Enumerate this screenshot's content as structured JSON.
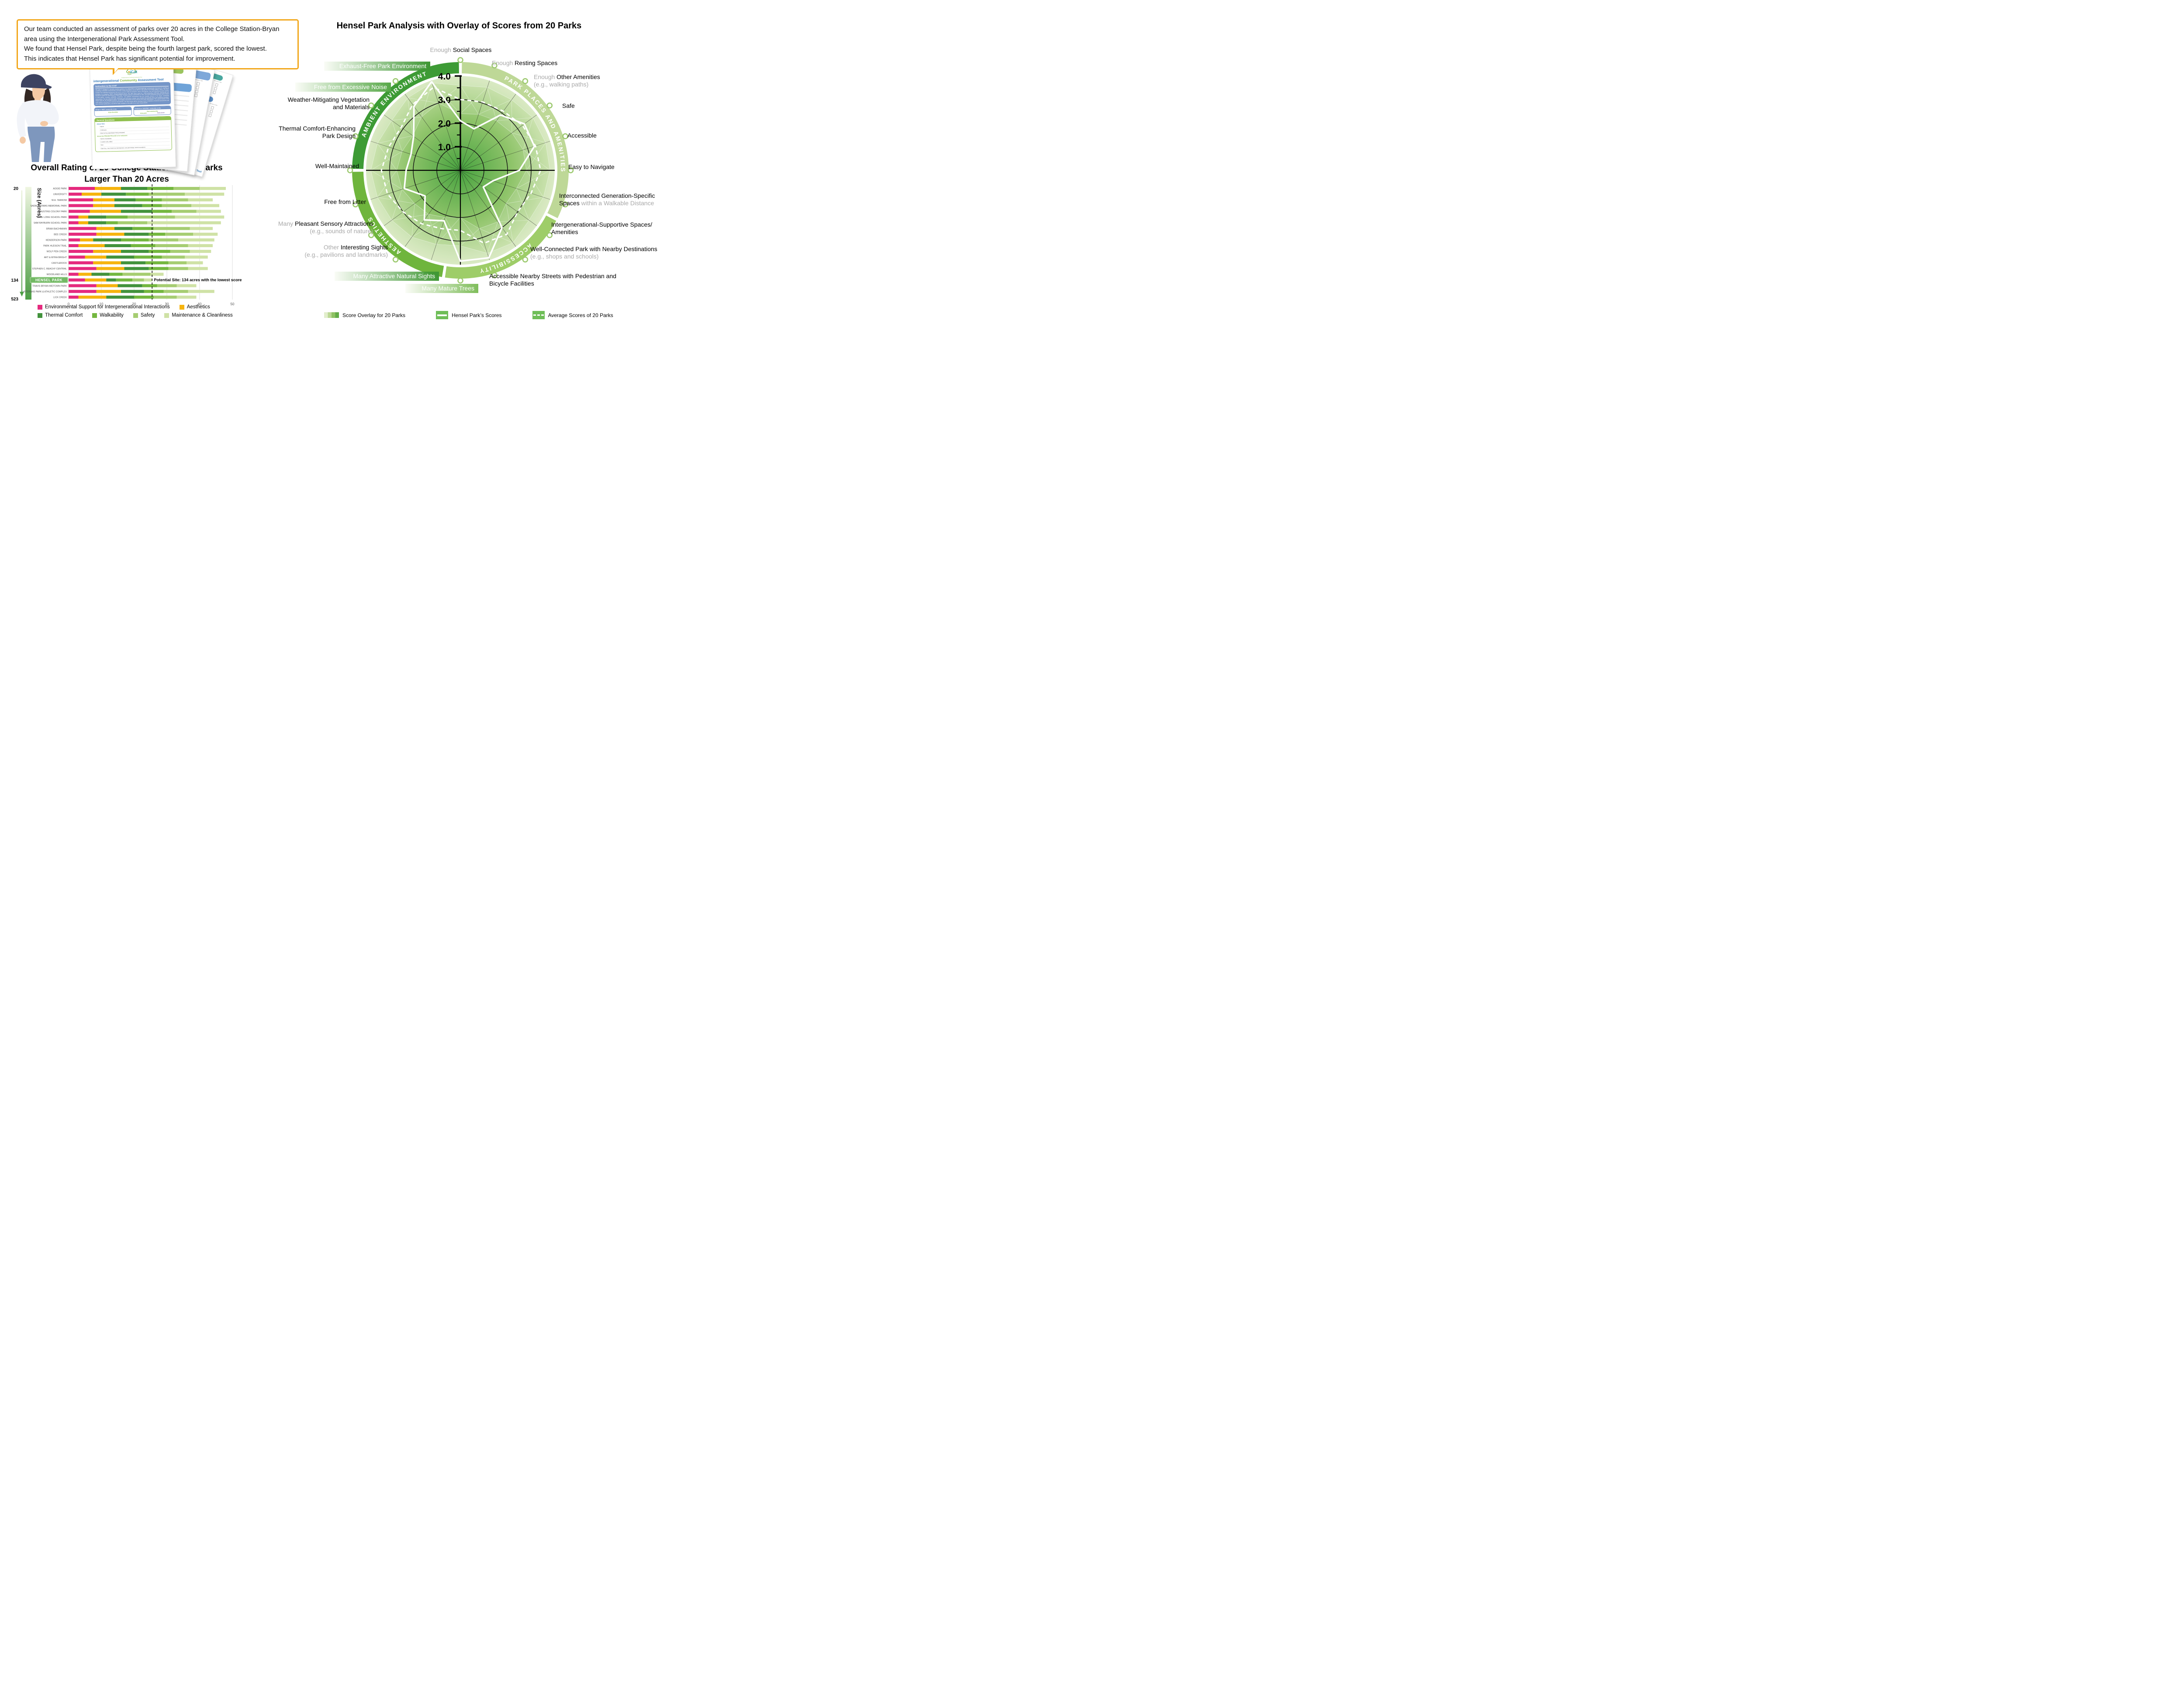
{
  "speech_bubble": {
    "lines": [
      "Our team conducted an assessment of parks over 20 acres in the College Station-Bryan",
      "area using the Intergenerational Park Assessment Tool.",
      "We found that Hensel Park, despite being the fourth largest park, scored the lowest.",
      "This indicates that Hensel Park has significant potential for improvement."
    ]
  },
  "document": {
    "logo_text": "iCat",
    "logo_caption": "Intergenerational Community Assessment Tool",
    "title_parts": [
      {
        "text": "intergenerational ",
        "color": "#2E74B5"
      },
      {
        "text": "Community ",
        "color": "#7CB342"
      },
      {
        "text": "Assessment Tool",
        "color": "#2E74B5"
      }
    ],
    "instruction_header": "Instruction to the iCAT",
    "instruction_body": "The iCAT is designed to provide practical guidance for policymakers and planning/design professionals interested in creating or retrofitting community environments to promote social interactions across different age groups and healthy aging in place. The iCAT includes four individual instruments that can be used for different purposes, users, and projects. The iCAT-checklist provides guiding principles for designing “NEW” intergenerational places. The other three tools (i.e., iCAT-community, iCAT-park, iCAT-street) are intended to guide the assessment of “EXISTING” intergenerational communities or sites. The iCAT-community includes items related to third places, housing, walkability, aesthetics, and ambient environment that are broadly relevant to the larger community environment. The two site-level tools, iCAT-park and iCAT-street, include more detailed site-specific items and individual amenities. These tools are not mutually exclusive, and multiple instruments can be used for the same project/place. The current version of the iCAT toolkit is developed for internal assessments. The final version will be developed upon completion of internal assessments and peer-reviewed publications, and will be made available to the public via an open study website.",
    "design_header": "Design a “NEW” community or site:",
    "design_item": "iCat-checklist",
    "evaluate_header": "Evaluate an “EXISTING” community or site:",
    "evaluate_items": [
      "iCat-community",
      "iCat-park",
      "iCat-street"
    ],
    "general_header": "General Questions",
    "about_you_label": "About YOU:",
    "about_you_items": [
      "Name:",
      "Profession:",
      "Role for the project/place being evaluated:"
    ],
    "about_place_label": "About the PROJECT/PLACE to be evaluated:",
    "about_place_items": [
      "Name (if available):",
      "Location (city, state):",
      "Size:",
      "Type (e.g., new mixed-use development, new park design, street renovation):"
    ],
    "back_page_header_fragments": [
      "r Destinations",
      "e, and Sociable"
    ],
    "back_partial_title": "ity Assessment Tool",
    "checkbox_headers_3": [
      "Somewhat agree",
      "Strongly agree",
      "Not sure or N/A"
    ],
    "checkbox_headers_4": [
      "Somewhat disagree",
      "Somewhat agree",
      "Strongly agree",
      "Not sure or N/A"
    ]
  },
  "chart_data": [
    {
      "type": "bar",
      "orientation": "horizontal-stacked",
      "title_line1": "Overall Rating of 20 College Station-Bryan Parks",
      "title_line2": "Larger Than 20 Acres",
      "y_axis_label": "Size (Acres)",
      "size_axis": {
        "top": "20",
        "hensel": "134",
        "bottom": "523"
      },
      "xlim": [
        0,
        50
      ],
      "x_ticks": [
        "0",
        "10",
        "20",
        "30",
        "40",
        "50"
      ],
      "annotation": "Potential Site: 134 acres with the lowest score",
      "annotation_x": 25.5,
      "highlight_park": "HENSEL PARK",
      "series_names": [
        "Environmental Support for Intergenerational Interactions",
        "Aesthetics",
        "Thermal Comfort",
        "Walkability",
        "Safety",
        "Maintenance & Cleanliness"
      ],
      "series_colors": [
        "#E52A7E",
        "#F6B40E",
        "#42923C",
        "#74B73F",
        "#A6CD72",
        "#CFE2A6"
      ],
      "legend_rows": [
        [
          {
            "color": "#E52A7E",
            "label": "Environmental Support for Intergenerational Interactions"
          },
          {
            "color": "#F6B40E",
            "label": "Aesthetics"
          }
        ],
        [
          {
            "color": "#42923C",
            "label": "Thermal Comfort"
          },
          {
            "color": "#74B73F",
            "label": "Walkability"
          },
          {
            "color": "#A6CD72",
            "label": "Safety"
          },
          {
            "color": "#CFE2A6",
            "label": "Maintenance & Cleanliness"
          }
        ]
      ],
      "parks": [
        {
          "name": "AGGIE PARK",
          "values": [
            8,
            8,
            8,
            8,
            8,
            8
          ]
        },
        {
          "name": "UNIVERSITY",
          "values": [
            4,
            6,
            7.5,
            7,
            11,
            12
          ]
        },
        {
          "name": "W.A. TARROW",
          "values": [
            7.5,
            6.5,
            6.5,
            8,
            8,
            7.5
          ]
        },
        {
          "name": "SADIE THOMAS MEMORIAL PARK",
          "values": [
            7.5,
            6.5,
            8.5,
            6,
            9,
            8.5
          ]
        },
        {
          "name": "AUSTINS COLONY PARK",
          "values": [
            6.5,
            9.5,
            9.5,
            6,
            7.5,
            7.5
          ]
        },
        {
          "name": "JANE LONG SCHOOL PARK",
          "values": [
            3,
            3,
            5.5,
            6.5,
            14.5,
            15
          ]
        },
        {
          "name": "SAM RAYBURN SCHOOL PARK",
          "values": [
            3,
            3,
            5.5,
            3.5,
            9,
            22.5
          ]
        },
        {
          "name": "BRIAN BACHMANN",
          "values": [
            8.5,
            5.5,
            5.5,
            6.5,
            11,
            7
          ]
        },
        {
          "name": "BEE CREEK",
          "values": [
            8.5,
            8.5,
            7.5,
            5,
            8.5,
            7.5
          ]
        },
        {
          "name": "HENDERSON PARK",
          "values": [
            3.5,
            4,
            8.5,
            8.5,
            9,
            11
          ]
        },
        {
          "name": "PARK HUDSON TRAIL",
          "values": [
            3,
            8,
            8,
            7.5,
            10,
            7.5
          ]
        },
        {
          "name": "WOLF PEN CREEK",
          "values": [
            7.5,
            8.5,
            8.5,
            6.5,
            6,
            6.5
          ]
        },
        {
          "name": "ART & MYRA BRIGHT",
          "values": [
            5,
            6.5,
            8.5,
            8.5,
            7,
            7
          ]
        },
        {
          "name": "CASTLEROCK",
          "values": [
            7.5,
            8.5,
            7.5,
            7,
            5.5,
            5
          ]
        },
        {
          "name": "STEPHEN C. BEACHY CENTRAL",
          "values": [
            8.5,
            8.5,
            7.5,
            6,
            6,
            6
          ]
        },
        {
          "name": "WOODLAND HILLS",
          "values": [
            3,
            4,
            5.5,
            4,
            8.5,
            4
          ]
        },
        {
          "name": "HENSEL PARK",
          "values": [
            5,
            6.5,
            3,
            5,
            3.5,
            2.5
          ]
        },
        {
          "name": "TRAVIS BRYAN MIDTOWN PARK",
          "values": [
            8.5,
            6.5,
            7.5,
            4.5,
            6,
            6
          ]
        },
        {
          "name": "VETERANS PARK & ATHLETIC COMPLEX",
          "values": [
            8.5,
            7.5,
            7,
            6,
            7.5,
            8
          ]
        },
        {
          "name": "LICK CREEK",
          "values": [
            3,
            8.5,
            8.5,
            6,
            7,
            6
          ]
        }
      ]
    },
    {
      "type": "radar",
      "title": "Hensel Park Analysis with Overlay of Scores from 20 Parks",
      "rmax": 4,
      "r_tick_labels": [
        "1.0",
        "2.0",
        "3.0",
        "4.0"
      ],
      "ring_groups": [
        {
          "name": "AMBIENT ENVIRONMENT",
          "color": "#3D9B35"
        },
        {
          "name": "PARK PLACES AND AMENITIES",
          "color": "#BED897"
        },
        {
          "name": "ACCESSIBILITY",
          "color": "#9ECD68"
        },
        {
          "name": "AESTHETICS",
          "color": "#6FB53D"
        }
      ],
      "marker_color": "#9CC96E",
      "overlay_gradient": [
        "#47A23F",
        "#8FC46A",
        "#CBE2AB"
      ],
      "spokes": [
        {
          "label_lines": [
            [
              {
                "t": "Enough ",
                "c": "g"
              },
              {
                "t": "Social Spaces",
                "c": "b"
              }
            ]
          ]
        },
        {
          "label_lines": [
            [
              {
                "t": "Enough ",
                "c": "g"
              },
              {
                "t": "Resting Spaces",
                "c": "b"
              }
            ]
          ]
        },
        {
          "label_lines": [
            [
              {
                "t": "Enough ",
                "c": "g"
              },
              {
                "t": "Other Amenities",
                "c": "b"
              }
            ],
            [
              {
                "t": "(e.g., walking paths)",
                "c": "g"
              }
            ]
          ]
        },
        {
          "label_lines": [
            [
              {
                "t": "Safe",
                "c": "b"
              }
            ]
          ]
        },
        {
          "label_lines": [
            [
              {
                "t": "Accessible",
                "c": "b"
              }
            ]
          ]
        },
        {
          "label_lines": [
            [
              {
                "t": "Easy to Navigate",
                "c": "b"
              }
            ]
          ]
        },
        {
          "label_lines": [
            [
              {
                "t": "Interconnected Generation-Specific",
                "c": "b"
              }
            ],
            [
              {
                "t": "Spaces ",
                "c": "b"
              },
              {
                "t": "within a Walkable Distance",
                "c": "g"
              }
            ]
          ]
        },
        {
          "label_lines": [
            [
              {
                "t": "Intergenerational-Supportive Spaces/",
                "c": "b"
              }
            ],
            [
              {
                "t": "Amenities",
                "c": "b"
              }
            ]
          ]
        },
        {
          "label_lines": [
            [
              {
                "t": "Well-Connected Park with Nearby Destinations",
                "c": "b"
              }
            ],
            [
              {
                "t": "(e.g., shops and schools)",
                "c": "g"
              }
            ]
          ]
        },
        {
          "label_lines": [
            [
              {
                "t": "Accessible Nearby Streets with Pedestrian and",
                "c": "b"
              }
            ],
            [
              {
                "t": "Bicycle Facilities",
                "c": "b"
              }
            ]
          ]
        },
        {
          "box": true,
          "label_lines": [
            [
              {
                "t": "Many Mature Trees",
                "c": "w"
              }
            ]
          ]
        },
        {
          "box": true,
          "label_lines": [
            [
              {
                "t": "Many Attractive Natural Sights",
                "c": "w"
              }
            ]
          ]
        },
        {
          "label_lines": [
            [
              {
                "t": "Other ",
                "c": "g"
              },
              {
                "t": "Interesting Sights",
                "c": "b"
              }
            ],
            [
              {
                "t": "(e.g., pavilions and landmarks)",
                "c": "g"
              }
            ]
          ]
        },
        {
          "label_lines": [
            [
              {
                "t": "Many ",
                "c": "g"
              },
              {
                "t": "Pleasant Sensory Attractions",
                "c": "b"
              }
            ],
            [
              {
                "t": "(e.g., sounds of nature)",
                "c": "g"
              }
            ]
          ]
        },
        {
          "label_lines": [
            [
              {
                "t": "Free from Litter",
                "c": "b"
              }
            ]
          ]
        },
        {
          "label_lines": [
            [
              {
                "t": "Well-Maintained",
                "c": "b"
              }
            ]
          ]
        },
        {
          "label_lines": [
            [
              {
                "t": "Thermal Comfort-Enhancing",
                "c": "b"
              }
            ],
            [
              {
                "t": "Park Design",
                "c": "b"
              }
            ]
          ]
        },
        {
          "label_lines": [
            [
              {
                "t": "Weather-Mitigating Vegetation",
                "c": "b"
              }
            ],
            [
              {
                "t": "and Materials",
                "c": "b"
              }
            ]
          ]
        },
        {
          "box": true,
          "label_lines": [
            [
              {
                "t": "Free from Excessive Noise",
                "c": "w"
              }
            ]
          ]
        },
        {
          "box": true,
          "label_lines": [
            [
              {
                "t": "Exhaust-Free Park Environment",
                "c": "w"
              }
            ]
          ]
        }
      ],
      "series": [
        {
          "name": "Hensel Park’s Scores",
          "style": "solid",
          "values": [
            2.1,
            1.85,
            2.9,
            3.35,
            3.3,
            2.5,
            1.45,
            1.2,
            3.0,
            3.9,
            3.85,
            2.25,
            2.6,
            1.85,
            2.5,
            2.3,
            2.2,
            2.45,
            3.35,
            3.95
          ]
        },
        {
          "name": "Average Scores of 20 Parks",
          "style": "dashed",
          "values": [
            3.0,
            3.05,
            3.1,
            3.25,
            3.35,
            3.4,
            3.15,
            3.0,
            3.35,
            3.25,
            2.55,
            2.6,
            2.8,
            3.0,
            3.25,
            3.35,
            3.2,
            3.1,
            3.45,
            3.7
          ]
        }
      ],
      "overlay_band_inner_q1": [
        2.4,
        2.5,
        2.6,
        2.7,
        2.8,
        2.8,
        2.5,
        2.4,
        2.7,
        2.6,
        2.0,
        2.1,
        2.3,
        2.4,
        2.6,
        2.7,
        2.6,
        2.5,
        2.8,
        3.0
      ],
      "overlay_band_outer_q3": [
        3.6,
        3.7,
        3.7,
        3.8,
        3.8,
        3.8,
        3.7,
        3.6,
        3.8,
        3.7,
        3.2,
        3.3,
        3.5,
        3.6,
        3.7,
        3.8,
        3.7,
        3.6,
        3.8,
        3.9
      ],
      "legend": [
        {
          "type": "gradient",
          "label": "Score Overlay for 20 Parks"
        },
        {
          "type": "solid",
          "label": "Hensel Park’s Scores"
        },
        {
          "type": "dashed",
          "label": "Average Scores of 20 Parks"
        }
      ]
    }
  ],
  "colors": {
    "bubble_border": "#F2A71B",
    "hensel_box": "#72B964",
    "hensel_box_border": "#A7D59A",
    "grad_box_dark_end": "#3F9735"
  }
}
